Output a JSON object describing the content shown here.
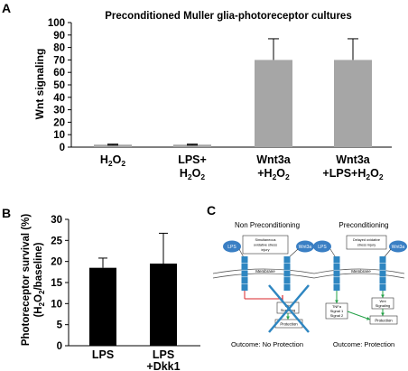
{
  "panels": {
    "a": "A",
    "b": "B",
    "c": "C"
  },
  "chart_data": [
    {
      "type": "bar",
      "title": "Preconditioned Muller glia-photoreceptor cultures",
      "ylabel": "Wnt signaling",
      "xlabel": "",
      "ylim": [
        0,
        100
      ],
      "yticks": [
        0,
        10,
        20,
        30,
        40,
        50,
        60,
        70,
        80,
        90,
        100
      ],
      "categories": [
        [
          "H",
          "2",
          "O",
          "2"
        ],
        [
          "LPS+",
          "H",
          "2",
          "O",
          "2"
        ],
        [
          "Wnt3a",
          "+H",
          "2",
          "O",
          "2"
        ],
        [
          "Wnt3a",
          "+LPS+H",
          "2",
          "O",
          "2"
        ]
      ],
      "values": [
        2,
        2,
        70,
        70
      ],
      "errors": [
        0.4,
        0.4,
        17,
        17
      ],
      "bar_color": "#a6a6a6",
      "grid": false
    },
    {
      "type": "bar",
      "ylabel_parts": [
        "Photoreceptor survival  (%)",
        "(H",
        "2",
        "O",
        "2",
        "/baseline)"
      ],
      "xlabel": "",
      "ylim": [
        0,
        30
      ],
      "yticks": [
        0,
        5,
        10,
        15,
        20,
        25,
        30
      ],
      "categories": [
        [
          "LPS"
        ],
        [
          "LPS",
          "+Dkk1"
        ]
      ],
      "values": [
        18.5,
        19.5
      ],
      "errors": [
        2.3,
        7.2
      ],
      "bar_color": "#000000",
      "grid": false
    }
  ],
  "diagram": {
    "left": {
      "heading": "Non Preconditioning",
      "box_line1": "Simultaneous",
      "box_line2": "oxidative stress",
      "box_line3": "injury",
      "lps": "LPS",
      "wnt": "Wnt3a",
      "membrane": "Membrane",
      "sig_line1": "Wnt",
      "sig_line2": "Signaling",
      "protection": "Protection",
      "outcome": "Outcome: No Protection",
      "outcome_color": "#d9262a"
    },
    "right": {
      "heading": "Preconditioning",
      "box_line1": "Delayed oxidative",
      "box_line2": "stress injury",
      "lps": "LPS",
      "wnt": "Wnt3a",
      "membrane": "Membrane",
      "sig_line1": "Wnt",
      "sig_line2": "Signaling",
      "tlr_line1": "TNFα",
      "tlr_line2": "Signal 1",
      "tlr_line3": "Signal 2",
      "protection": "Protection",
      "outcome": "Outcome: Protection",
      "outcome_color": "#22a046"
    },
    "colors": {
      "receptor": "#2e86c1",
      "ellipse": "#3a7fc4",
      "arrow": "#22a046",
      "inhibit": "#d9262a",
      "cross": "#2e86c1"
    }
  }
}
